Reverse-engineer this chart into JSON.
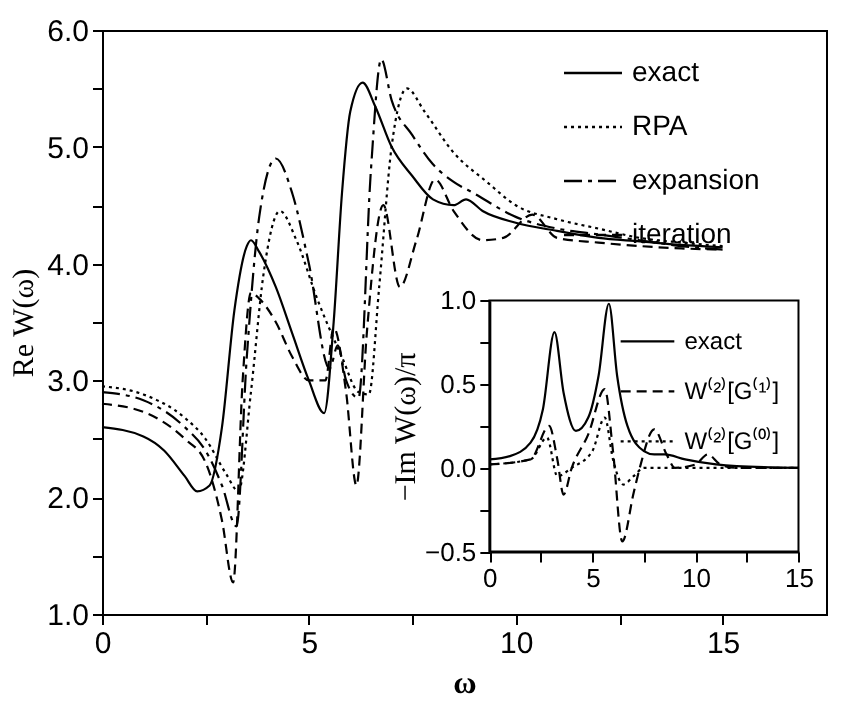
{
  "chart_data": [
    {
      "type": "line",
      "xlabel": "ω",
      "ylabel": "Re W(ω)",
      "xlim": [
        0,
        17.5
      ],
      "ylim": [
        1.0,
        6.0
      ],
      "xticks": [
        0,
        {
          "value": 2.5,
          "label": null
        },
        5,
        {
          "value": 7.5,
          "label": null
        },
        10,
        {
          "value": 12.5,
          "label": null
        },
        15
      ],
      "yticks": [
        {
          "value": 1.0,
          "label": "1.0"
        },
        {
          "value": 1.5,
          "label": null
        },
        {
          "value": 2.0,
          "label": "2.0"
        },
        {
          "value": 2.5,
          "label": null
        },
        {
          "value": 3.0,
          "label": "3.0"
        },
        {
          "value": 3.5,
          "label": null
        },
        {
          "value": 4.0,
          "label": "4.0"
        },
        {
          "value": 4.5,
          "label": null
        },
        {
          "value": 5.0,
          "label": "5.0"
        },
        {
          "value": 5.5,
          "label": null
        },
        {
          "value": 6.0,
          "label": "6.0"
        }
      ],
      "grid": false,
      "legend": "top right",
      "series": [
        {
          "name": "exact",
          "color": "#000000",
          "line_style": "solid",
          "x": [
            0,
            1,
            1.5,
            2,
            2.3,
            2.6,
            2.9,
            3.2,
            3.5,
            3.6,
            3.8,
            4.2,
            4.6,
            5.0,
            5.37,
            5.6,
            5.8,
            6.0,
            6.3,
            6.6,
            7.0,
            7.5,
            8.0,
            8.5,
            8.8,
            9.2,
            10,
            11,
            12,
            13,
            14,
            15
          ],
          "values": [
            2.6,
            2.52,
            2.4,
            2.18,
            2.05,
            2.1,
            2.6,
            3.6,
            4.15,
            4.2,
            4.1,
            3.8,
            3.4,
            3.0,
            2.72,
            3.5,
            4.6,
            5.3,
            5.55,
            5.35,
            5.0,
            4.75,
            4.55,
            4.5,
            4.55,
            4.45,
            4.35,
            4.28,
            4.22,
            4.19,
            4.16,
            4.14
          ]
        },
        {
          "name": "RPA",
          "color": "#000000",
          "line_style": "dotted",
          "x": [
            0,
            1,
            2,
            2.5,
            3,
            3.3,
            3.6,
            3.9,
            4.3,
            4.7,
            5.2,
            5.8,
            6.2,
            6.45,
            6.7,
            7.0,
            7.37,
            7.8,
            8.5,
            9.3,
            10,
            11,
            12,
            13,
            14,
            15
          ],
          "values": [
            2.95,
            2.88,
            2.68,
            2.5,
            2.2,
            2.05,
            2.9,
            3.9,
            4.45,
            4.2,
            3.7,
            3.2,
            2.9,
            2.88,
            3.8,
            5.0,
            5.5,
            5.3,
            4.95,
            4.7,
            4.5,
            4.38,
            4.3,
            4.22,
            4.18,
            4.15
          ]
        },
        {
          "name": "expansion",
          "color": "#000000",
          "line_style": "dashdot",
          "x": [
            0,
            1,
            2,
            2.5,
            2.9,
            3.25,
            3.5,
            3.8,
            4.2,
            4.6,
            5.0,
            5.5,
            5.7,
            5.9,
            6.2,
            6.5,
            6.75,
            7.0,
            7.5,
            8.0,
            8.5,
            9.0,
            10,
            11,
            12,
            13,
            14,
            15
          ],
          "values": [
            2.9,
            2.83,
            2.6,
            2.4,
            2.1,
            1.75,
            3.2,
            4.4,
            4.9,
            4.6,
            4.0,
            3.1,
            3.3,
            3.0,
            2.85,
            4.8,
            5.75,
            5.4,
            5.1,
            4.85,
            4.7,
            4.6,
            4.4,
            4.3,
            4.25,
            4.2,
            4.15,
            4.12
          ]
        },
        {
          "name": "iteration",
          "color": "#000000",
          "line_style": "dashed",
          "x": [
            0,
            1,
            2,
            2.5,
            2.9,
            3.17,
            3.4,
            3.6,
            3.8,
            4.2,
            4.6,
            5.0,
            5.4,
            5.6,
            5.9,
            6.15,
            6.4,
            6.8,
            7.2,
            7.6,
            8.05,
            8.5,
            9.2,
            9.7,
            10.4,
            11,
            12,
            13,
            14,
            15
          ],
          "values": [
            2.8,
            2.73,
            2.5,
            2.3,
            1.8,
            1.27,
            3.0,
            3.75,
            3.7,
            3.5,
            3.2,
            3.0,
            3.0,
            3.45,
            2.9,
            2.1,
            3.4,
            4.5,
            3.8,
            4.2,
            4.72,
            4.45,
            4.2,
            4.22,
            4.42,
            4.22,
            4.18,
            4.15,
            4.13,
            4.12
          ]
        }
      ]
    },
    {
      "type": "line",
      "ylabel": "−Im W(ω)/π",
      "xlim": [
        0,
        15
      ],
      "ylim": [
        -0.5,
        1.0
      ],
      "xticks": [
        0,
        {
          "value": 2.5,
          "label": null
        },
        5,
        {
          "value": 7.5,
          "label": null
        },
        10,
        {
          "value": 12.5,
          "label": null
        },
        15
      ],
      "yticks": [
        {
          "value": -0.5,
          "label": "−0.5"
        },
        {
          "value": -0.25,
          "label": null
        },
        {
          "value": 0.0,
          "label": "0.0"
        },
        {
          "value": 0.25,
          "label": null
        },
        {
          "value": 0.5,
          "label": "0.5"
        },
        {
          "value": 0.75,
          "label": null
        },
        {
          "value": 1.0,
          "label": "1.0"
        }
      ],
      "grid": false,
      "legend": "top right",
      "series": [
        {
          "name": "exact",
          "color": "#000000",
          "line_style": "solid",
          "x": [
            0,
            1,
            2,
            2.6,
            3.16,
            3.6,
            4.2,
            4.8,
            5.3,
            5.8,
            6.2,
            6.7,
            7.5,
            8.0,
            8.5,
            9.5,
            11,
            12,
            15
          ],
          "values": [
            0.05,
            0.07,
            0.15,
            0.35,
            0.81,
            0.45,
            0.22,
            0.3,
            0.55,
            0.98,
            0.55,
            0.25,
            0.1,
            0.08,
            0.08,
            0.05,
            0.02,
            0.01,
            0.0
          ]
        },
        {
          "name": "W⁽²⁾[G⁽¹⁾]",
          "color": "#000000",
          "line_style": "dashed",
          "x": [
            0,
            2,
            2.9,
            3.3,
            3.6,
            4.0,
            4.8,
            5.6,
            6.0,
            6.45,
            7.0,
            7.3,
            8.0,
            8.6,
            9.0,
            10.0,
            10.6,
            11.2,
            12,
            15
          ],
          "values": [
            0.02,
            0.05,
            0.25,
            0.05,
            -0.16,
            0.0,
            0.2,
            0.47,
            0.1,
            -0.44,
            -0.15,
            0.0,
            0.23,
            0.08,
            0.0,
            0.02,
            0.08,
            0.02,
            0.0,
            0.0
          ]
        },
        {
          "name": "W⁽²⁾[G⁽⁰⁾]",
          "color": "#000000",
          "line_style": "dotted",
          "x": [
            0,
            2,
            2.8,
            3.3,
            4.0,
            5.0,
            5.6,
            6.0,
            6.5,
            7.0,
            7.5,
            9,
            15
          ],
          "values": [
            0.02,
            0.05,
            0.18,
            -0.05,
            0.0,
            0.1,
            0.3,
            0.05,
            -0.1,
            -0.05,
            0.0,
            0.0,
            0.0
          ]
        }
      ]
    }
  ]
}
